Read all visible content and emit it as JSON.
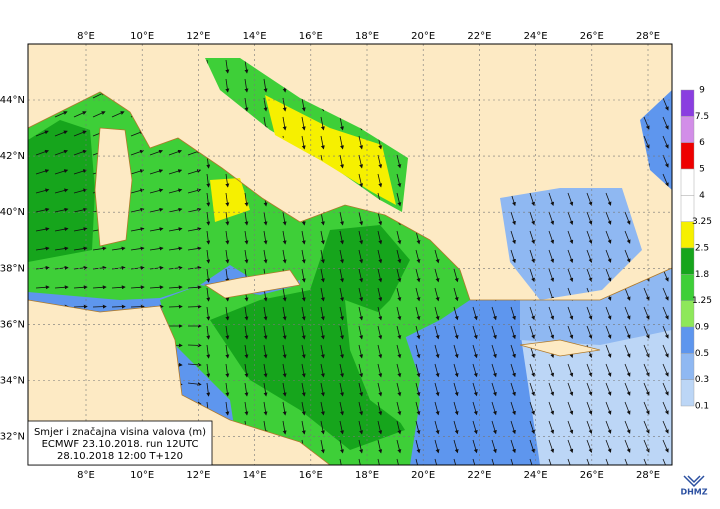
{
  "map": {
    "lon_labels": [
      "8°E",
      "10°E",
      "12°E",
      "14°E",
      "16°E",
      "18°E",
      "20°E",
      "22°E",
      "24°E",
      "26°E",
      "28°E"
    ],
    "lat_labels": [
      "44°N",
      "42°N",
      "40°N",
      "38°N",
      "36°N",
      "34°N",
      "32°N"
    ]
  },
  "legend": {
    "levels": [
      "9",
      "7.5",
      "6",
      "5",
      "4",
      "3.25",
      "2.5",
      "1.8",
      "1.25",
      "0.9",
      "0.5",
      "0.3",
      "0.1"
    ],
    "colors": [
      "#8a3ee0",
      "#d28ee8",
      "#ee0000",
      "#ffffff",
      "#ffffff",
      "#f6f000",
      "#16a51c",
      "#3ecf38",
      "#8ee85a",
      "#5e96ee",
      "#8fb8f2",
      "#bcd6f6",
      "#e4f0fb"
    ]
  },
  "info_box": {
    "lines": [
      "Smjer i značajna visina valova (m)",
      "ECMWF 23.10.2018. run 12UTC",
      "28.10.2018 12:00  T+120"
    ]
  },
  "logo": "DHMZ"
}
